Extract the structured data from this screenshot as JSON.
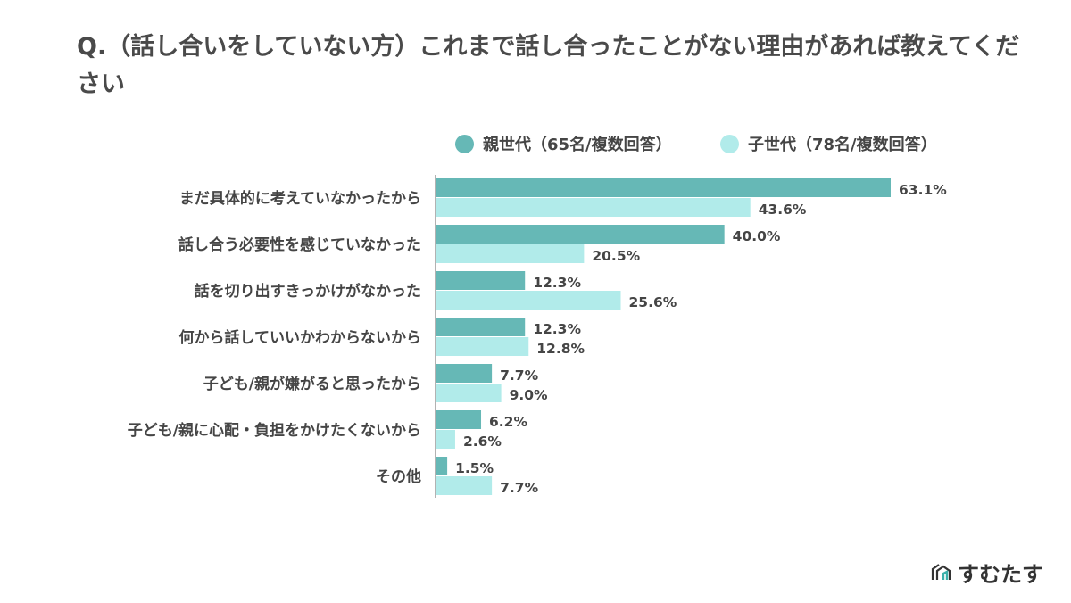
{
  "title": "Q.（話し合いをしていない方）これまで話し合ったことがない理由があれば教えてください",
  "logo_text": "すむたす",
  "chart_data": {
    "type": "bar",
    "orientation": "horizontal",
    "title": "Q.（話し合いをしていない方）これまで話し合ったことがない理由があれば教えてください",
    "categories": [
      "まだ具体的に考えていなかったから",
      "話し合う必要性を感じていなかった",
      "話を切り出すきっかけがなかった",
      "何から話していいかわからないから",
      "子ども/親が嫌がると思ったから",
      "子ども/親に心配・負担をかけたくないから",
      "その他"
    ],
    "series": [
      {
        "name": "親世代（65名/複数回答）",
        "color": "#66b8b6",
        "values": [
          63.1,
          40.0,
          12.3,
          12.3,
          7.7,
          6.2,
          1.5
        ]
      },
      {
        "name": "子世代（78名/複数回答）",
        "color": "#b1ebea",
        "values": [
          43.6,
          20.5,
          25.6,
          12.8,
          9.0,
          2.6,
          7.7
        ]
      }
    ],
    "unit": "%",
    "legend_position": "top-right",
    "grid": false
  }
}
